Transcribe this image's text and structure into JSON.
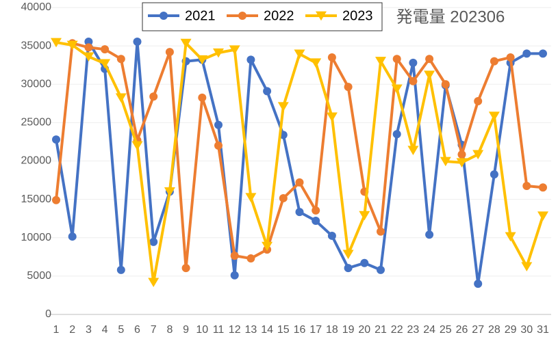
{
  "chart_data": {
    "type": "line",
    "title": "発電量 202306",
    "categories": [
      "1",
      "2",
      "3",
      "4",
      "5",
      "6",
      "7",
      "8",
      "9",
      "10",
      "11",
      "12",
      "13",
      "14",
      "15",
      "16",
      "17",
      "18",
      "19",
      "20",
      "21",
      "22",
      "23",
      "24",
      "25",
      "26",
      "27",
      "28",
      "29",
      "30",
      "31"
    ],
    "series": [
      {
        "name": "2021",
        "color": "#4472c4",
        "marker": "circle",
        "values": [
          22800,
          10150,
          35550,
          32000,
          5800,
          35550,
          9450,
          16000,
          33000,
          33200,
          24700,
          5100,
          33200,
          29100,
          23400,
          13350,
          12200,
          10250,
          6050,
          6700,
          5800,
          23500,
          32800,
          10400,
          29850,
          22100,
          4000,
          18250,
          32800,
          34000,
          34000
        ]
      },
      {
        "name": "2022",
        "color": "#ed7d31",
        "marker": "circle",
        "values": [
          14900,
          35350,
          34800,
          34550,
          33300,
          22700,
          28400,
          34200,
          6050,
          28250,
          22000,
          7650,
          7300,
          8450,
          15150,
          17200,
          13550,
          33500,
          29650,
          16000,
          10800,
          33300,
          30400,
          33300,
          30000,
          20850,
          27800,
          33000,
          33500,
          16750,
          16550
        ]
      },
      {
        "name": "2023",
        "color": "#ffc000",
        "marker": "triangle-down",
        "values": [
          35450,
          35100,
          33600,
          32700,
          28250,
          22000,
          4200,
          16000,
          35350,
          33200,
          34100,
          34500,
          15250,
          8900,
          27100,
          33950,
          32800,
          25750,
          7850,
          12900,
          33000,
          29400,
          21400,
          31200,
          19950,
          19800,
          20850,
          25850,
          10150,
          6250,
          12850
        ]
      }
    ],
    "ylim": [
      0,
      40000
    ],
    "yticks": [
      0,
      5000,
      10000,
      15000,
      20000,
      25000,
      30000,
      35000,
      40000
    ],
    "grid": true
  }
}
